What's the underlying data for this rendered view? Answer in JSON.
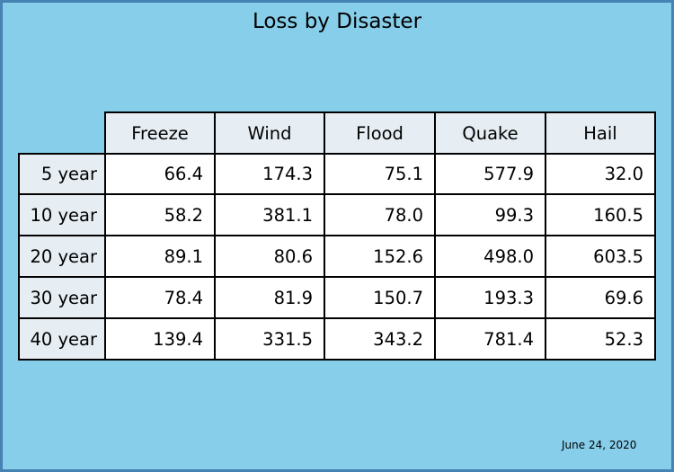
{
  "chart_data": {
    "type": "table",
    "title": "Loss by Disaster",
    "columns": [
      "Freeze",
      "Wind",
      "Flood",
      "Quake",
      "Hail"
    ],
    "rows": [
      "5 year",
      "10 year",
      "20 year",
      "30 year",
      "40 year"
    ],
    "cells": [
      [
        "66.4",
        "174.3",
        "75.1",
        "577.9",
        "32.0"
      ],
      [
        "58.2",
        "381.1",
        "78.0",
        "99.3",
        "160.5"
      ],
      [
        "89.1",
        "80.6",
        "152.6",
        "498.0",
        "603.5"
      ],
      [
        "78.4",
        "81.9",
        "150.7",
        "193.3",
        "69.6"
      ],
      [
        "139.4",
        "331.5",
        "343.2",
        "781.4",
        "52.3"
      ]
    ],
    "footnote": "June 24, 2020"
  },
  "colors": {
    "background": "#87ceeb",
    "frame": "#4682b4",
    "header_fill": "#e6eef4",
    "cell_fill": "#ffffff"
  }
}
